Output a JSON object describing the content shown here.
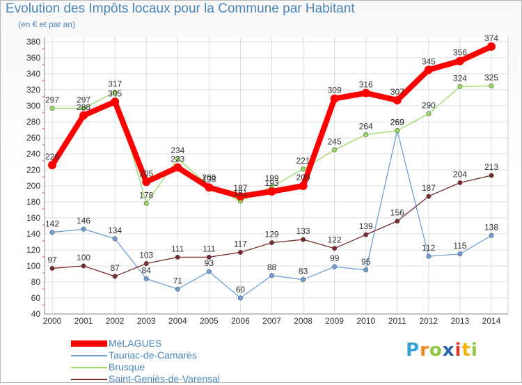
{
  "header": {
    "title": "Evolution des Impôts locaux pour la Commune par Habitant",
    "subtitle": "(en € et par an)"
  },
  "logo": {
    "letters": [
      {
        "char": "P",
        "color": "#3aa0d8"
      },
      {
        "char": "r",
        "color": "#ef8a1e"
      },
      {
        "char": "o",
        "color": "#8cc63f"
      },
      {
        "char": "x",
        "color": "#2b62b0"
      },
      {
        "char": "i",
        "color": "#e2332a"
      },
      {
        "char": "t",
        "color": "#f4b400"
      },
      {
        "char": "i",
        "color": "#8cc63f"
      }
    ]
  },
  "chart_data": {
    "type": "line",
    "title": "Evolution des Impôts locaux pour la Commune par Habitant",
    "subtitle": "(en € et par an)",
    "xlabel": "",
    "ylabel": "",
    "categories": [
      "2000",
      "2001",
      "2002",
      "2003",
      "2004",
      "2005",
      "2006",
      "2007",
      "2008",
      "2009",
      "2010",
      "2011",
      "2012",
      "2013",
      "2014"
    ],
    "ylim": [
      40,
      380
    ],
    "yticks": [
      40,
      60,
      80,
      100,
      120,
      140,
      160,
      180,
      200,
      220,
      240,
      260,
      280,
      300,
      320,
      340,
      360,
      380
    ],
    "grid": true,
    "legend_position": "bottom-left",
    "series": [
      {
        "name": "MéLAGUES",
        "color": "#ff0000",
        "values": [
          226,
          288,
          305,
          205,
          223,
          198,
          187,
          193,
          200,
          309,
          316,
          307,
          345,
          356,
          374
        ],
        "labels": [
          "226",
          "288",
          "305",
          "205",
          "223",
          "198",
          "187",
          "193",
          "200",
          "309",
          "316",
          "307",
          "345",
          "356",
          "374"
        ]
      },
      {
        "name": "Tauriac-de-Camarès",
        "color": "#6f9fd8",
        "values": [
          142,
          146,
          134,
          84,
          71,
          93,
          60,
          88,
          83,
          99,
          95,
          269,
          112,
          115,
          138
        ],
        "labels": [
          "142",
          "146",
          "134",
          "84",
          "71",
          "93",
          "60",
          "88",
          "83",
          "99",
          "95",
          "269",
          "112",
          "115",
          "138"
        ]
      },
      {
        "name": "Brusque",
        "color": "#98dc5e",
        "values": [
          297,
          297,
          317,
          178,
          234,
          200,
          181,
          199,
          221,
          245,
          264,
          269,
          290,
          324,
          325
        ],
        "labels": [
          "297",
          "297",
          "317",
          "178",
          "234",
          "200",
          "181",
          "199",
          "221",
          "245",
          "264",
          "269",
          "290",
          "324",
          "325"
        ]
      },
      {
        "name": "Saint-Geniès-de-Varensal",
        "color": "#7a2a2a",
        "values": [
          97,
          100,
          87,
          103,
          111,
          111,
          117,
          129,
          133,
          122,
          139,
          156,
          187,
          204,
          213
        ],
        "labels": [
          "97",
          "100",
          "87",
          "103",
          "111",
          "111",
          "117",
          "129",
          "133",
          "122",
          "139",
          "156",
          "187",
          "204",
          "213"
        ]
      }
    ]
  }
}
